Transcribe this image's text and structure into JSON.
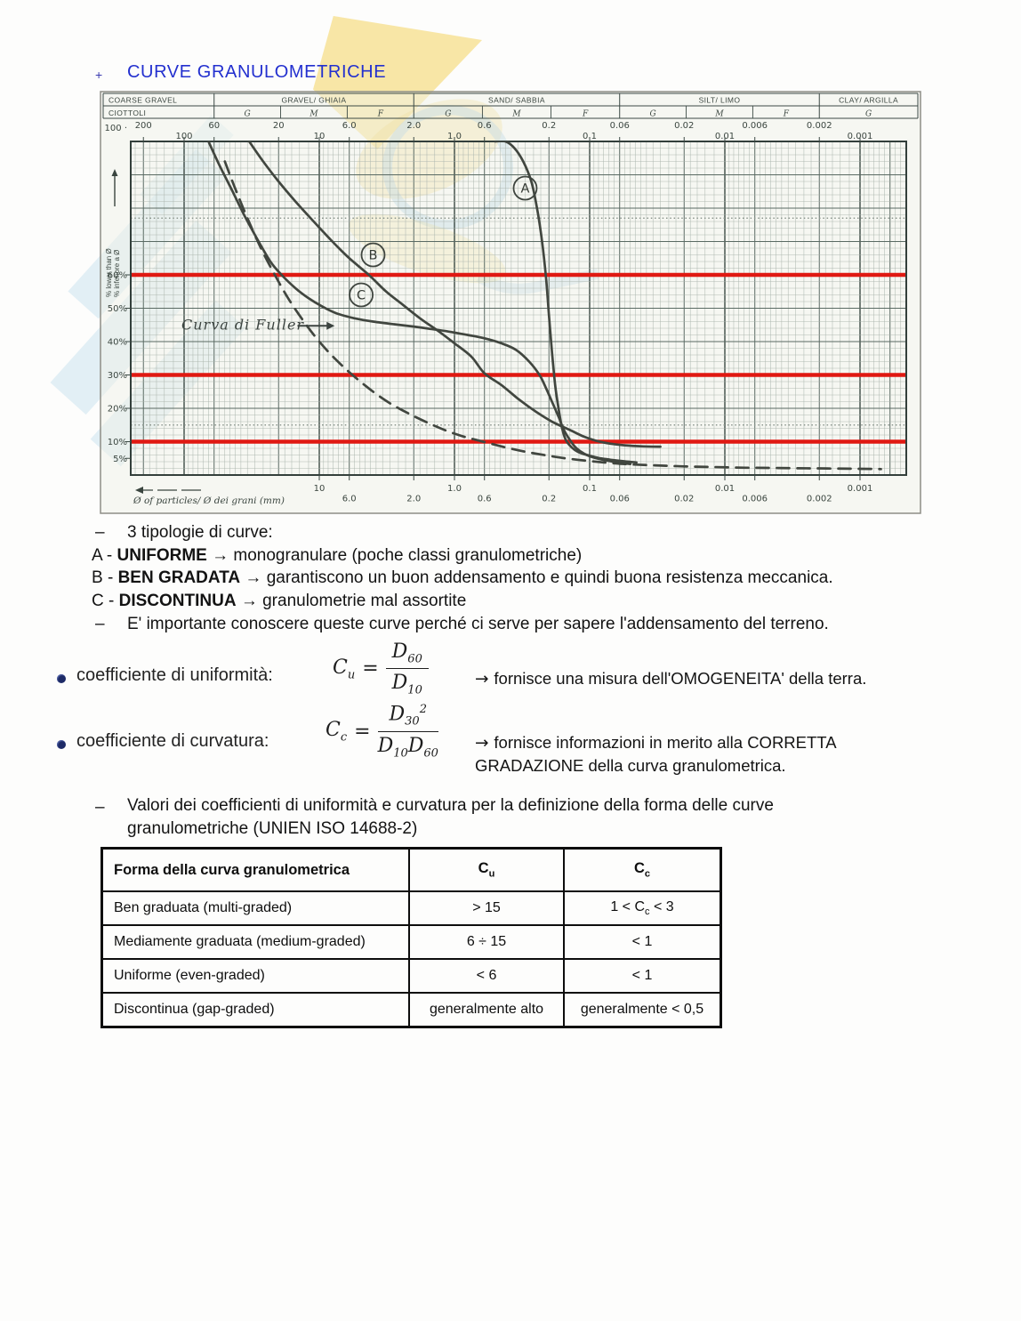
{
  "header": {
    "bullet": "+",
    "title": "CURVE GRANULOMETRICHE"
  },
  "chart_data": {
    "type": "line",
    "x_scale": "log",
    "x_axis_label": "Ø of particles/ Ø dei grani (mm)",
    "y_axis_label_lines": [
      "% lower than Ø",
      "% inferiore a Ø"
    ],
    "x_range_mm": [
      248,
      0.00045
    ],
    "y_range_pct": [
      0,
      100
    ],
    "top_categories": [
      {
        "label": "COARSE GRAVEL",
        "label2": "CIOTTOLI",
        "from_mm": 248,
        "to_mm": 60,
        "subs": []
      },
      {
        "label": "GRAVEL/ GHIAIA",
        "from_mm": 60,
        "to_mm": 2,
        "subs": [
          "G",
          "M",
          "F"
        ]
      },
      {
        "label": "SAND/ SABBIA",
        "from_mm": 2,
        "to_mm": 0.06,
        "subs": [
          "G",
          "M",
          "F"
        ]
      },
      {
        "label": "SILT/ LIMO",
        "from_mm": 0.06,
        "to_mm": 0.002,
        "subs": [
          "G",
          "M",
          "F"
        ]
      },
      {
        "label": "CLAY/ ARGILLA",
        "from_mm": 0.002,
        "to_mm": 0.00045,
        "subs": [
          "G"
        ]
      }
    ],
    "x_ticks_top_upper": [
      {
        "v": 200,
        "t": "200"
      },
      {
        "v": 60,
        "t": "60"
      },
      {
        "v": 20,
        "t": "20"
      },
      {
        "v": 6,
        "t": "6.0"
      },
      {
        "v": 2,
        "t": "2.0"
      },
      {
        "v": 0.6,
        "t": "0.6"
      },
      {
        "v": 0.2,
        "t": "0.2"
      },
      {
        "v": 0.06,
        "t": "0.06"
      },
      {
        "v": 0.02,
        "t": "0.02"
      },
      {
        "v": 0.006,
        "t": "0.006"
      },
      {
        "v": 0.002,
        "t": "0.002"
      }
    ],
    "x_ticks_top_lower": [
      {
        "v": 100,
        "t": "100"
      },
      {
        "v": 10,
        "t": "10"
      },
      {
        "v": 1,
        "t": "1.0"
      },
      {
        "v": 0.1,
        "t": "0.1"
      },
      {
        "v": 0.01,
        "t": "0.01"
      },
      {
        "v": 0.001,
        "t": "0.001"
      }
    ],
    "x_ticks_bottom_upper": [
      {
        "v": 10,
        "t": "10"
      },
      {
        "v": 1,
        "t": "1.0"
      },
      {
        "v": 0.1,
        "t": "0.1"
      },
      {
        "v": 0.01,
        "t": "0.01"
      },
      {
        "v": 0.001,
        "t": "0.001"
      }
    ],
    "x_ticks_bottom_lower": [
      {
        "v": 6,
        "t": "6.0"
      },
      {
        "v": 2,
        "t": "2.0"
      },
      {
        "v": 0.6,
        "t": "0.6"
      },
      {
        "v": 0.2,
        "t": "0.2"
      },
      {
        "v": 0.06,
        "t": "0.06"
      },
      {
        "v": 0.02,
        "t": "0.02"
      },
      {
        "v": 0.006,
        "t": "0.006"
      },
      {
        "v": 0.002,
        "t": "0.002"
      }
    ],
    "y_ticks": [
      {
        "v": 100,
        "t": "100 ·"
      },
      {
        "v": 60,
        "t": "60%"
      },
      {
        "v": 50,
        "t": "50%"
      },
      {
        "v": 40,
        "t": "40%"
      },
      {
        "v": 30,
        "t": "30%"
      },
      {
        "v": 20,
        "t": "20%"
      },
      {
        "v": 10,
        "t": "10%"
      },
      {
        "v": 5,
        "t": "5%"
      }
    ],
    "red_reference_lines_pct": [
      60,
      30,
      10
    ],
    "dotted_guide_lines_pct": [
      77,
      15
    ],
    "series": [
      {
        "name": "A",
        "style": "solid",
        "points": [
          [
            0.5,
            100
          ],
          [
            0.42,
            100
          ],
          [
            0.36,
            98
          ],
          [
            0.31,
            94
          ],
          [
            0.27,
            88
          ],
          [
            0.245,
            80
          ],
          [
            0.225,
            70
          ],
          [
            0.21,
            59
          ],
          [
            0.2,
            48
          ],
          [
            0.19,
            37
          ],
          [
            0.18,
            27
          ],
          [
            0.17,
            20
          ],
          [
            0.16,
            14
          ],
          [
            0.15,
            10.5
          ],
          [
            0.135,
            8.2
          ],
          [
            0.12,
            6.8
          ],
          [
            0.1,
            5.8
          ],
          [
            0.085,
            5.1
          ],
          [
            0.07,
            4.6
          ],
          [
            0.055,
            4.1
          ],
          [
            0.045,
            3.8
          ]
        ]
      },
      {
        "name": "B",
        "style": "solid",
        "points": [
          [
            33,
            100
          ],
          [
            26,
            94
          ],
          [
            20,
            88
          ],
          [
            15,
            82
          ],
          [
            11,
            76
          ],
          [
            8,
            70
          ],
          [
            6,
            65
          ],
          [
            4.3,
            60
          ],
          [
            3.2,
            55
          ],
          [
            2.4,
            51
          ],
          [
            1.8,
            47
          ],
          [
            1.3,
            43
          ],
          [
            1.0,
            39.5
          ],
          [
            0.75,
            35.5
          ],
          [
            0.6,
            30.5
          ],
          [
            0.45,
            27
          ],
          [
            0.33,
            22.5
          ],
          [
            0.25,
            19
          ],
          [
            0.19,
            16
          ],
          [
            0.14,
            13.5
          ],
          [
            0.11,
            11.5
          ],
          [
            0.09,
            10.3
          ],
          [
            0.07,
            9.4
          ],
          [
            0.055,
            8.9
          ],
          [
            0.04,
            8.6
          ],
          [
            0.03,
            8.5
          ]
        ]
      },
      {
        "name": "C",
        "style": "solid",
        "points": [
          [
            66,
            100
          ],
          [
            55,
            93
          ],
          [
            45,
            86
          ],
          [
            36,
            78
          ],
          [
            29,
            71
          ],
          [
            23,
            64
          ],
          [
            19,
            60
          ],
          [
            15,
            56
          ],
          [
            12,
            53
          ],
          [
            9.5,
            50.5
          ],
          [
            7.5,
            48.5
          ],
          [
            5.5,
            47
          ],
          [
            4,
            46
          ],
          [
            2.8,
            45.2
          ],
          [
            2,
            44.5
          ],
          [
            1.5,
            43.8
          ],
          [
            1.1,
            43
          ],
          [
            0.8,
            42
          ],
          [
            0.6,
            41
          ],
          [
            0.45,
            39.5
          ],
          [
            0.35,
            37.5
          ],
          [
            0.28,
            34
          ],
          [
            0.235,
            30
          ],
          [
            0.21,
            26
          ],
          [
            0.19,
            22
          ],
          [
            0.17,
            17.5
          ],
          [
            0.155,
            13.5
          ],
          [
            0.14,
            10.5
          ],
          [
            0.125,
            8
          ],
          [
            0.105,
            6
          ],
          [
            0.085,
            4.8
          ],
          [
            0.065,
            3.9
          ],
          [
            0.05,
            3.3
          ]
        ]
      },
      {
        "name": "Curva di Fuller",
        "style": "dashed",
        "points": [
          [
            50,
            94
          ],
          [
            42,
            86
          ],
          [
            34,
            77
          ],
          [
            27,
            68
          ],
          [
            22,
            61
          ],
          [
            17,
            53
          ],
          [
            13,
            46
          ],
          [
            10,
            40
          ],
          [
            7.5,
            34.5
          ],
          [
            5.5,
            29.5
          ],
          [
            4,
            25
          ],
          [
            3,
            21.5
          ],
          [
            2.2,
            18.5
          ],
          [
            1.6,
            15.8
          ],
          [
            1.15,
            13.3
          ],
          [
            0.85,
            11.5
          ],
          [
            0.6,
            9.9
          ],
          [
            0.42,
            8.3
          ],
          [
            0.3,
            7
          ],
          [
            0.21,
            5.9
          ],
          [
            0.15,
            5
          ],
          [
            0.1,
            4.2
          ],
          [
            0.07,
            3.6
          ],
          [
            0.05,
            3.2
          ],
          [
            0.033,
            2.9
          ],
          [
            0.02,
            2.6
          ],
          [
            0.012,
            2.4
          ],
          [
            0.007,
            2.2
          ],
          [
            0.004,
            2.1
          ],
          [
            0.0022,
            2
          ],
          [
            0.0012,
            1.9
          ],
          [
            0.0007,
            1.8
          ]
        ]
      }
    ],
    "curve_labels": [
      {
        "t": "A",
        "circle": true,
        "d": 0.3,
        "p": 86
      },
      {
        "t": "B",
        "circle": true,
        "d": 4.0,
        "p": 66
      },
      {
        "t": "C",
        "circle": true,
        "d": 4.9,
        "p": 54
      },
      {
        "t": "Curva di Fuller",
        "circle": false,
        "d": 100,
        "p": 45,
        "arrow_from_d": 14.5,
        "arrow_to_d": 7.7
      }
    ],
    "colors": {
      "paper": "#f0f1e8",
      "grid_minor": "#a9b4ac",
      "grid_mid": "#5a6a63",
      "grid_major": "#3c4a45",
      "ink": "#41463f",
      "red": "#e01912",
      "scan_border": "#8e8e86",
      "header_text": "#3a453f"
    }
  },
  "notes": {
    "lines": [
      {
        "dash": "–",
        "segments": [
          {
            "t": "3 tipologie di curve:"
          }
        ]
      },
      {
        "segments": [
          {
            "t": "A - "
          },
          {
            "t": "UNIFORME",
            "bold": true
          },
          {
            "t": " → monogranulare (poche classi granulometriche)"
          }
        ]
      },
      {
        "segments": [
          {
            "t": "B - "
          },
          {
            "t": "BEN GRADATA",
            "bold": true
          },
          {
            "t": " → garantiscono un buon addensamento e quindi buona resistenza meccanica."
          }
        ]
      },
      {
        "segments": [
          {
            "t": "C - "
          },
          {
            "t": "DISCONTINUA",
            "bold": true
          },
          {
            "t": " → granulometrie mal assortite"
          }
        ]
      },
      {
        "dash": "–",
        "segments": [
          {
            "t": "E' importante conoscere queste curve perché ci serve per sapere l'addensamento del terreno."
          }
        ]
      }
    ]
  },
  "coefficients": [
    {
      "label": "coefficiente di uniformità:",
      "symbol": {
        "base": "C",
        "sub": "u"
      },
      "equals": "=",
      "fraction": {
        "num": [
          {
            "base": "D",
            "sub": "60"
          }
        ],
        "num_sup": "",
        "den": [
          {
            "base": "D",
            "sub": "10"
          }
        ]
      },
      "arrow": "→",
      "description": "fornisce una misura dell'OMOGENEITA' della terra."
    },
    {
      "label": "coefficiente di curvatura:",
      "symbol": {
        "base": "C",
        "sub": "c"
      },
      "equals": "=",
      "fraction": {
        "num": [
          {
            "base": "D",
            "sub": "30"
          }
        ],
        "num_sup": "2",
        "den": [
          {
            "base": "D",
            "sub": "10"
          },
          {
            "base": "D",
            "sub": "60"
          }
        ]
      },
      "arrow": "→",
      "description": "fornisce informazioni in merito alla CORRETTA GRADAZIONE della curva granulometrica."
    }
  ],
  "valori_note": {
    "dash": "–",
    "line1": "Valori dei coefficienti di uniformità e curvatura per la definizione della forma delle curve",
    "line2": "granulometriche (UNIEN ISO 14688-2)"
  },
  "table": {
    "headers": [
      {
        "text": "Forma della curva granulometrica"
      },
      {
        "text": "C",
        "sub": "u"
      },
      {
        "text": "C",
        "sub": "c"
      }
    ],
    "rows": [
      [
        {
          "text": "Ben graduata (multi-graded)"
        },
        {
          "text": "> 15"
        },
        {
          "pre": "1 < C",
          "sub": "c",
          "post": " < 3"
        }
      ],
      [
        {
          "text": "Mediamente graduata (medium-graded)"
        },
        {
          "text": "6 ÷ 15"
        },
        {
          "text": "< 1"
        }
      ],
      [
        {
          "text": "Uniforme (even-graded)"
        },
        {
          "text": "< 6"
        },
        {
          "text": "< 1"
        }
      ],
      [
        {
          "text": "Discontinua (gap-graded)"
        },
        {
          "text": "generalmente alto"
        },
        {
          "text": "generalmente < 0,5"
        }
      ]
    ]
  }
}
